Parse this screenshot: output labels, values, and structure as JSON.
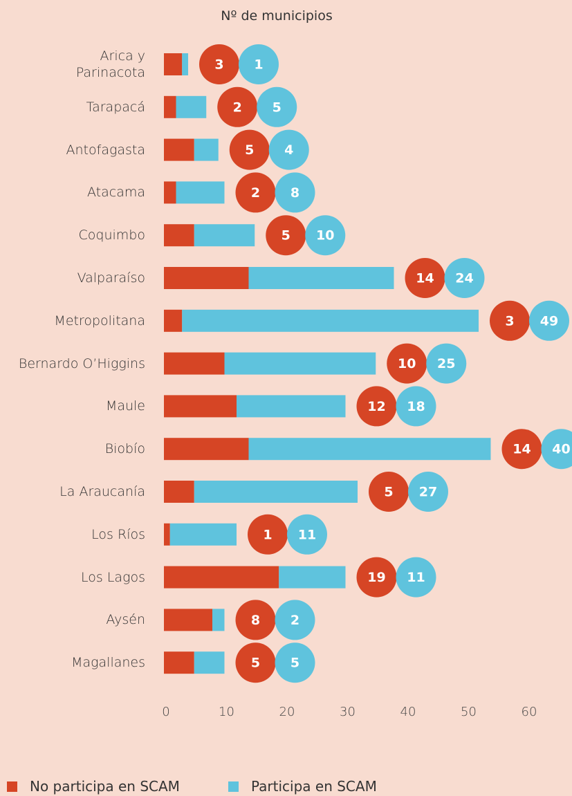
{
  "chart_data": {
    "type": "stacked-bar-horizontal",
    "title": "Nº de municipios",
    "categories": [
      "Arica y\nParinacota",
      "Tarapacá",
      "Antofagasta",
      "Atacama",
      "Coquimbo",
      "Valparaíso",
      "Metropolitana",
      "Bernardo O’Higgins",
      "Maule",
      "Biobío",
      "La Araucanía",
      "Los Ríos",
      "Los Lagos",
      "Aysén",
      "Magallanes"
    ],
    "series": [
      {
        "name": "No participa en SCAM",
        "color": "#d64525",
        "values": [
          3,
          2,
          5,
          2,
          5,
          14,
          3,
          10,
          12,
          14,
          5,
          1,
          19,
          8,
          5
        ]
      },
      {
        "name": "Participa en SCAM",
        "color": "#5fc3dd",
        "values": [
          1,
          5,
          4,
          8,
          10,
          24,
          49,
          25,
          18,
          40,
          27,
          11,
          11,
          2,
          5
        ]
      }
    ],
    "xlim": [
      0,
      60
    ],
    "xticks": [
      0,
      10,
      20,
      30,
      40,
      50,
      60
    ],
    "legend": "bottom"
  }
}
